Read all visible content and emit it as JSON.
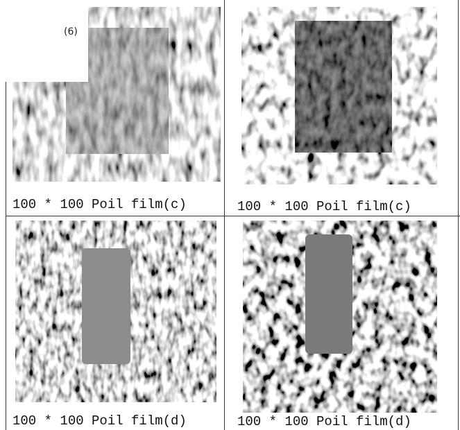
{
  "label": "(6)",
  "cells": [
    {
      "caption": "100 * 100 Poil film(c)"
    },
    {
      "caption": "100 * 100 Poil film(c)"
    },
    {
      "caption": "100 * 100 Poil film(d)"
    },
    {
      "caption": "100 * 100 Poil film(d)"
    }
  ]
}
